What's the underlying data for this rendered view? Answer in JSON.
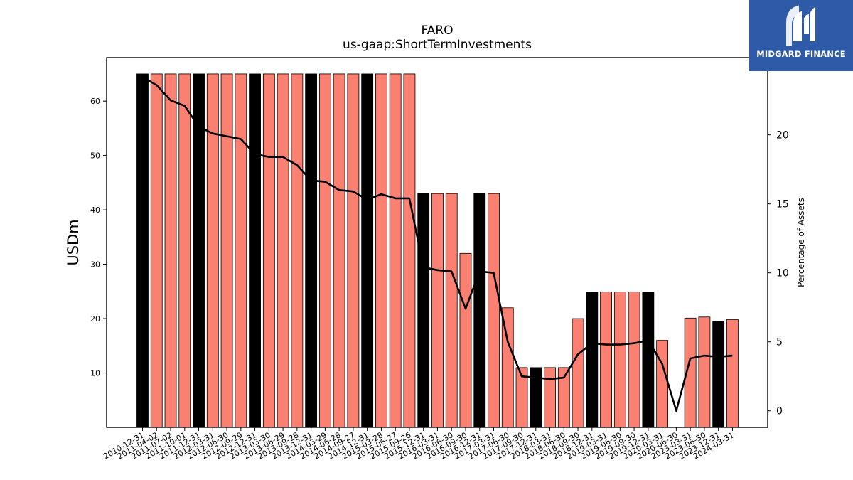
{
  "brand": {
    "name": "MIDGARD FINANCE",
    "bg_color": "#2f5aa8"
  },
  "chart_data": {
    "type": "bar",
    "title": "FARO",
    "subtitle": "us-gaap:ShortTermInvestments",
    "ylabel": "USDm",
    "y2label": "Percentage of Assets",
    "ylim": [
      0,
      68
    ],
    "y2lim": [
      -1.2,
      25.6
    ],
    "yticks": [
      10,
      20,
      30,
      40,
      50,
      60
    ],
    "y2ticks": [
      0,
      5,
      10,
      15,
      20
    ],
    "colors": {
      "bar": "#fa8072",
      "bar_highlight": "#000000",
      "line": "#000000"
    },
    "categories": [
      "2010-12-31",
      "2011-04-02",
      "2011-07-02",
      "2011-10-01",
      "2011-12-31",
      "2012-03-31",
      "2012-06-30",
      "2012-09-29",
      "2012-12-31",
      "2013-03-30",
      "2013-06-29",
      "2013-09-28",
      "2013-12-31",
      "2014-03-29",
      "2014-06-28",
      "2014-09-27",
      "2014-12-31",
      "2015-03-28",
      "2015-06-27",
      "2015-09-26",
      "2015-12-31",
      "2016-03-31",
      "2016-06-30",
      "2016-09-30",
      "2016-12-31",
      "2017-03-31",
      "2017-06-30",
      "2017-09-30",
      "2017-12-31",
      "2018-03-31",
      "2018-06-30",
      "2018-09-30",
      "2018-12-31",
      "2019-03-31",
      "2019-06-30",
      "2019-09-30",
      "2019-12-31",
      "2020-03-31",
      "2020-06-30",
      "2023-03-31",
      "2023-06-30",
      "2023-12-31",
      "2024-03-31"
    ],
    "series": [
      {
        "kind": "bar",
        "values": [
          65,
          65,
          65,
          65,
          65,
          65,
          65,
          65,
          65,
          65,
          65,
          65,
          65,
          65,
          65,
          65,
          65,
          65,
          65,
          65,
          43,
          43,
          43,
          32,
          43,
          43,
          22,
          11,
          11,
          11,
          11,
          20,
          24.8,
          24.9,
          24.9,
          24.9,
          24.9,
          16,
          null,
          20.1,
          20.3,
          19.5,
          19.8
        ],
        "highlighted": [
          true,
          false,
          false,
          false,
          true,
          false,
          false,
          false,
          true,
          false,
          false,
          false,
          true,
          false,
          false,
          false,
          true,
          false,
          false,
          false,
          true,
          false,
          false,
          false,
          true,
          false,
          false,
          false,
          true,
          false,
          false,
          false,
          true,
          false,
          false,
          false,
          true,
          false,
          false,
          false,
          false,
          true,
          false
        ]
      },
      {
        "kind": "line",
        "axis": "right",
        "values": [
          24.2,
          23.6,
          22.5,
          22.1,
          20.6,
          20.1,
          19.9,
          19.7,
          18.6,
          18.4,
          18.4,
          17.8,
          16.7,
          16.6,
          16.0,
          15.9,
          15.3,
          15.7,
          15.4,
          15.4,
          10.4,
          10.2,
          10.1,
          7.4,
          10.1,
          10.0,
          5.0,
          2.5,
          2.4,
          2.3,
          2.4,
          4.1,
          4.9,
          4.8,
          4.8,
          4.9,
          5.1,
          3.4,
          0.0,
          3.8,
          4.0,
          3.9,
          4.0
        ]
      }
    ]
  }
}
